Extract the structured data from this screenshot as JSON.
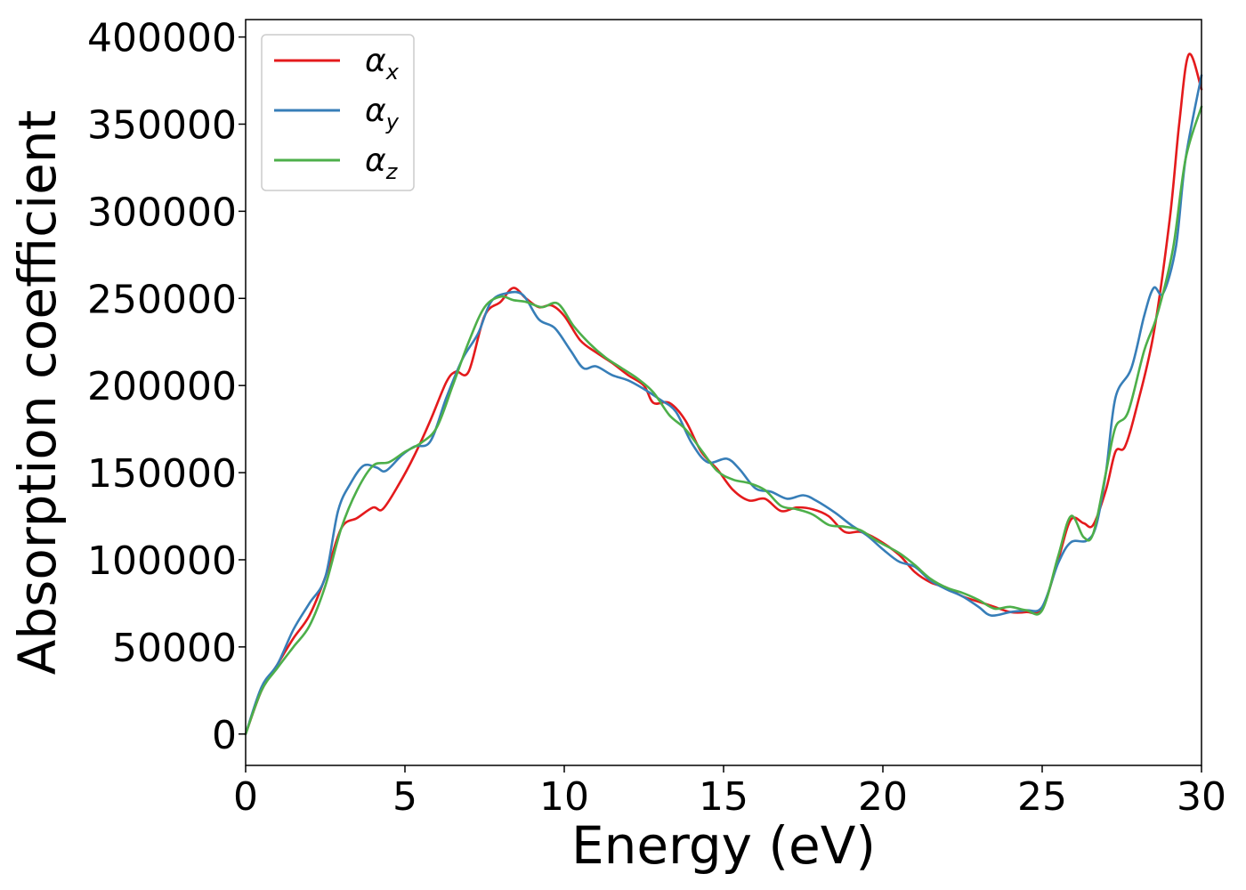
{
  "chart_data": {
    "type": "line",
    "xlabel": "Energy (eV)",
    "ylabel": "Absorption coefficient",
    "xlim": [
      0,
      30
    ],
    "ylim": [
      -18000,
      410000
    ],
    "xticks": [
      0,
      5,
      10,
      15,
      20,
      25,
      30
    ],
    "xtick_labels": [
      "0",
      "5",
      "10",
      "15",
      "20",
      "25",
      "30"
    ],
    "yticks": [
      0,
      50000,
      100000,
      150000,
      200000,
      250000,
      300000,
      350000,
      400000
    ],
    "ytick_labels": [
      "0",
      "50000",
      "100000",
      "150000",
      "200000",
      "250000",
      "300000",
      "350000",
      "400000"
    ],
    "grid": false,
    "legend_position": "top-left",
    "series": [
      {
        "name": "αx",
        "symbol": "α",
        "subscript": "x",
        "color": "#e41a1c",
        "points": [
          [
            0,
            0
          ],
          [
            0.5,
            25000
          ],
          [
            1,
            40000
          ],
          [
            1.5,
            55000
          ],
          [
            2,
            68000
          ],
          [
            2.5,
            90000
          ],
          [
            3,
            118000
          ],
          [
            3.5,
            124000
          ],
          [
            4,
            130000
          ],
          [
            4.3,
            129000
          ],
          [
            4.8,
            143000
          ],
          [
            5.3,
            160000
          ],
          [
            5.8,
            180000
          ],
          [
            6.3,
            202000
          ],
          [
            6.6,
            208000
          ],
          [
            7,
            208000
          ],
          [
            7.5,
            240000
          ],
          [
            8,
            248000
          ],
          [
            8.4,
            256000
          ],
          [
            8.8,
            250000
          ],
          [
            9.2,
            245000
          ],
          [
            9.6,
            246000
          ],
          [
            10,
            240000
          ],
          [
            10.5,
            226000
          ],
          [
            11,
            219000
          ],
          [
            11.5,
            213000
          ],
          [
            12,
            206000
          ],
          [
            12.5,
            200000
          ],
          [
            12.8,
            190000
          ],
          [
            13.3,
            190000
          ],
          [
            13.8,
            180000
          ],
          [
            14.3,
            162000
          ],
          [
            14.8,
            152000
          ],
          [
            15.3,
            140000
          ],
          [
            15.8,
            134000
          ],
          [
            16.3,
            135000
          ],
          [
            16.8,
            128000
          ],
          [
            17.3,
            130000
          ],
          [
            17.8,
            129000
          ],
          [
            18.3,
            125000
          ],
          [
            18.8,
            116000
          ],
          [
            19.3,
            116000
          ],
          [
            19.8,
            112000
          ],
          [
            20.5,
            103000
          ],
          [
            21,
            93000
          ],
          [
            21.5,
            87000
          ],
          [
            22,
            84000
          ],
          [
            22.5,
            79000
          ],
          [
            23,
            76000
          ],
          [
            23.5,
            73000
          ],
          [
            24,
            70000
          ],
          [
            24.5,
            70000
          ],
          [
            25,
            72000
          ],
          [
            25.5,
            100000
          ],
          [
            25.9,
            123000
          ],
          [
            26.3,
            121000
          ],
          [
            26.6,
            120000
          ],
          [
            27,
            140000
          ],
          [
            27.3,
            162000
          ],
          [
            27.6,
            165000
          ],
          [
            28,
            190000
          ],
          [
            28.5,
            230000
          ],
          [
            29,
            295000
          ],
          [
            29.3,
            350000
          ],
          [
            29.6,
            390000
          ],
          [
            30,
            370000
          ]
        ]
      },
      {
        "name": "αy",
        "symbol": "α",
        "subscript": "y",
        "color": "#377eb8",
        "points": [
          [
            0,
            0
          ],
          [
            0.5,
            27000
          ],
          [
            1,
            40000
          ],
          [
            1.5,
            60000
          ],
          [
            2,
            75000
          ],
          [
            2.5,
            90000
          ],
          [
            2.9,
            128000
          ],
          [
            3.3,
            144000
          ],
          [
            3.7,
            154000
          ],
          [
            4.1,
            153000
          ],
          [
            4.4,
            151000
          ],
          [
            4.9,
            160000
          ],
          [
            5.3,
            165000
          ],
          [
            5.8,
            168000
          ],
          [
            6.3,
            193000
          ],
          [
            6.8,
            215000
          ],
          [
            7.3,
            230000
          ],
          [
            7.7,
            248000
          ],
          [
            8.2,
            253000
          ],
          [
            8.7,
            252000
          ],
          [
            9.2,
            238000
          ],
          [
            9.7,
            233000
          ],
          [
            10.2,
            220000
          ],
          [
            10.6,
            210000
          ],
          [
            11,
            211000
          ],
          [
            11.5,
            206000
          ],
          [
            12,
            203000
          ],
          [
            12.5,
            198000
          ],
          [
            13,
            192000
          ],
          [
            13.5,
            185000
          ],
          [
            14,
            167000
          ],
          [
            14.5,
            156000
          ],
          [
            15.1,
            158000
          ],
          [
            15.5,
            152000
          ],
          [
            16,
            141000
          ],
          [
            16.5,
            139000
          ],
          [
            17,
            135000
          ],
          [
            17.5,
            137000
          ],
          [
            17.9,
            134000
          ],
          [
            18.5,
            127000
          ],
          [
            19,
            120000
          ],
          [
            19.5,
            114000
          ],
          [
            20,
            106000
          ],
          [
            20.5,
            99000
          ],
          [
            21,
            96000
          ],
          [
            21.5,
            88000
          ],
          [
            22,
            83000
          ],
          [
            22.5,
            79000
          ],
          [
            23,
            73000
          ],
          [
            23.4,
            68000
          ],
          [
            24,
            70000
          ],
          [
            24.5,
            71000
          ],
          [
            25,
            73000
          ],
          [
            25.5,
            98000
          ],
          [
            25.9,
            110000
          ],
          [
            26.4,
            111000
          ],
          [
            26.7,
            120000
          ],
          [
            27,
            150000
          ],
          [
            27.3,
            193000
          ],
          [
            27.8,
            210000
          ],
          [
            28.2,
            240000
          ],
          [
            28.5,
            256000
          ],
          [
            28.8,
            253000
          ],
          [
            29.2,
            280000
          ],
          [
            29.5,
            330000
          ],
          [
            30,
            378000
          ]
        ]
      },
      {
        "name": "αz",
        "symbol": "α",
        "subscript": "z",
        "color": "#4daf4a",
        "points": [
          [
            0,
            0
          ],
          [
            0.5,
            25000
          ],
          [
            1,
            38000
          ],
          [
            1.5,
            50000
          ],
          [
            2,
            62000
          ],
          [
            2.5,
            85000
          ],
          [
            3,
            118000
          ],
          [
            3.5,
            140000
          ],
          [
            4,
            154000
          ],
          [
            4.5,
            156000
          ],
          [
            5,
            162000
          ],
          [
            5.5,
            167000
          ],
          [
            6,
            176000
          ],
          [
            6.5,
            200000
          ],
          [
            7,
            225000
          ],
          [
            7.5,
            245000
          ],
          [
            8,
            251000
          ],
          [
            8.4,
            249000
          ],
          [
            8.8,
            248000
          ],
          [
            9.3,
            245000
          ],
          [
            9.8,
            247000
          ],
          [
            10.3,
            234000
          ],
          [
            10.8,
            224000
          ],
          [
            11.3,
            216000
          ],
          [
            11.8,
            210000
          ],
          [
            12.3,
            204000
          ],
          [
            12.8,
            196000
          ],
          [
            13.3,
            183000
          ],
          [
            13.8,
            175000
          ],
          [
            14.3,
            163000
          ],
          [
            14.8,
            151000
          ],
          [
            15.3,
            146000
          ],
          [
            15.8,
            144000
          ],
          [
            16.3,
            140000
          ],
          [
            16.8,
            131000
          ],
          [
            17.3,
            129000
          ],
          [
            17.8,
            126000
          ],
          [
            18.3,
            120000
          ],
          [
            18.8,
            119000
          ],
          [
            19.3,
            117000
          ],
          [
            19.8,
            111000
          ],
          [
            20.5,
            104000
          ],
          [
            21,
            97000
          ],
          [
            21.5,
            89000
          ],
          [
            22,
            84000
          ],
          [
            22.5,
            81000
          ],
          [
            23,
            77000
          ],
          [
            23.5,
            72000
          ],
          [
            24,
            73000
          ],
          [
            24.5,
            71000
          ],
          [
            25,
            71000
          ],
          [
            25.5,
            102000
          ],
          [
            25.9,
            125000
          ],
          [
            26.3,
            113000
          ],
          [
            26.6,
            115000
          ],
          [
            27,
            150000
          ],
          [
            27.3,
            176000
          ],
          [
            27.7,
            185000
          ],
          [
            28.2,
            220000
          ],
          [
            28.6,
            240000
          ],
          [
            29.1,
            278000
          ],
          [
            29.5,
            330000
          ],
          [
            30,
            360000
          ]
        ]
      }
    ]
  }
}
